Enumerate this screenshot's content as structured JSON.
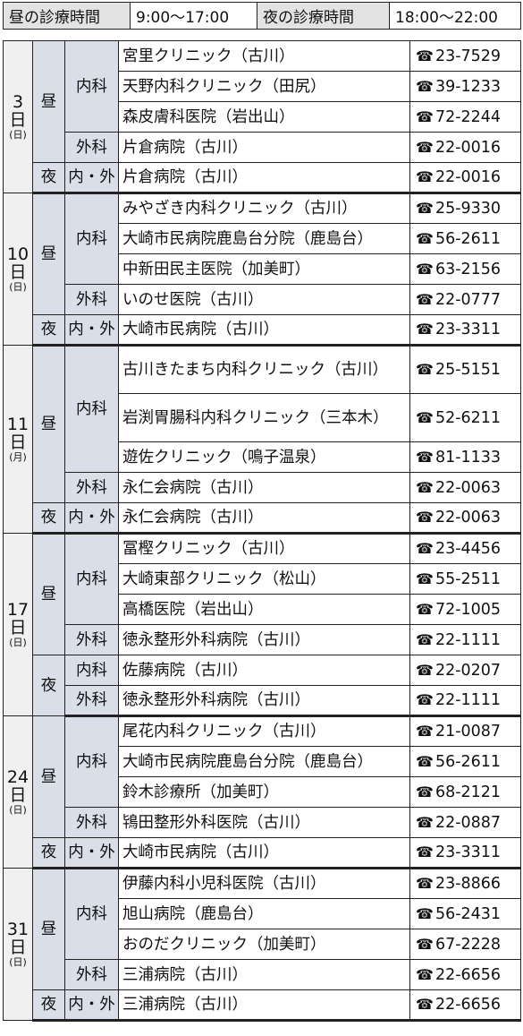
{
  "hours": {
    "day_label": "昼の診療時間",
    "day_time": "9:00〜17:00",
    "night_label": "夜の診療時間",
    "night_time": "18:00〜22:00"
  },
  "day_char": "日",
  "tel_symbol": "☎",
  "rows": [
    {
      "day": {
        "num": "3",
        "week": "(日)",
        "rows": 5
      },
      "slot": {
        "label": "昼",
        "rows": 4
      },
      "dept": {
        "label": "内科",
        "rows": 3
      },
      "clinic": "宮里クリニック（古川）",
      "phone": "23-7529"
    },
    {
      "clinic": "天野内科クリニック（田尻）",
      "phone": "39-1233"
    },
    {
      "clinic": "森皮膚科医院（岩出山）",
      "phone": "72-2244"
    },
    {
      "dept": {
        "label": "外科",
        "rows": 1
      },
      "clinic": "片倉病院（古川）",
      "phone": "22-0016"
    },
    {
      "slot": {
        "label": "夜",
        "rows": 1
      },
      "dept": {
        "label": "内・外",
        "rows": 1
      },
      "clinic": "片倉病院（古川）",
      "phone": "22-0016",
      "dayend": true
    },
    {
      "day": {
        "num": "10",
        "week": "(日)",
        "rows": 5
      },
      "slot": {
        "label": "昼",
        "rows": 4
      },
      "dept": {
        "label": "内科",
        "rows": 3
      },
      "clinic": "みやざき内科クリニック（古川）",
      "phone": "25-9330"
    },
    {
      "clinic": "大崎市民病院鹿島台分院（鹿島台）",
      "phone": "56-2611"
    },
    {
      "clinic": "中新田民主医院（加美町）",
      "phone": "63-2156"
    },
    {
      "dept": {
        "label": "外科",
        "rows": 1
      },
      "clinic": "いのせ医院（古川）",
      "phone": "22-0777"
    },
    {
      "slot": {
        "label": "夜",
        "rows": 1
      },
      "dept": {
        "label": "内・外",
        "rows": 1
      },
      "clinic": "大崎市民病院（古川）",
      "phone": "23-3311",
      "dayend": true
    },
    {
      "day": {
        "num": "11",
        "week": "(月)",
        "rows": 5
      },
      "slot": {
        "label": "昼",
        "rows": 4
      },
      "dept": {
        "label": "内科",
        "rows": 3
      },
      "clinic": "古川きたまち内科クリニック（古川）",
      "phone": "25-5151",
      "tall": true
    },
    {
      "clinic": "岩渕胃腸科内科クリニック（三本木）",
      "phone": "52-6211",
      "tall": true
    },
    {
      "clinic": "遊佐クリニック（鳴子温泉）",
      "phone": "81-1133"
    },
    {
      "dept": {
        "label": "外科",
        "rows": 1
      },
      "clinic": "永仁会病院（古川）",
      "phone": "22-0063"
    },
    {
      "slot": {
        "label": "夜",
        "rows": 1
      },
      "dept": {
        "label": "内・外",
        "rows": 1
      },
      "clinic": "永仁会病院（古川）",
      "phone": "22-0063",
      "dayend": true
    },
    {
      "day": {
        "num": "17",
        "week": "(日)",
        "rows": 6
      },
      "slot": {
        "label": "昼",
        "rows": 4
      },
      "dept": {
        "label": "内科",
        "rows": 3
      },
      "clinic": "冨樫クリニック（古川）",
      "phone": "23-4456"
    },
    {
      "clinic": "大崎東部クリニック（松山）",
      "phone": "55-2511"
    },
    {
      "clinic": "高橋医院（岩出山）",
      "phone": "72-1005"
    },
    {
      "dept": {
        "label": "外科",
        "rows": 1
      },
      "clinic": "徳永整形外科病院（古川）",
      "phone": "22-1111"
    },
    {
      "slot": {
        "label": "夜",
        "rows": 2
      },
      "dept": {
        "label": "内科",
        "rows": 1
      },
      "clinic": "佐藤病院（古川）",
      "phone": "22-0207"
    },
    {
      "dept": {
        "label": "外科",
        "rows": 1
      },
      "clinic": "徳永整形外科病院（古川）",
      "phone": "22-1111",
      "dayend": true
    },
    {
      "day": {
        "num": "24",
        "week": "(日)",
        "rows": 5
      },
      "slot": {
        "label": "昼",
        "rows": 4
      },
      "dept": {
        "label": "内科",
        "rows": 3
      },
      "clinic": "尾花内科クリニック（古川）",
      "phone": "21-0087"
    },
    {
      "clinic": "大崎市民病院鹿島台分院（鹿島台）",
      "phone": "56-2611"
    },
    {
      "clinic": "鈴木診療所（加美町）",
      "phone": "68-2121"
    },
    {
      "dept": {
        "label": "外科",
        "rows": 1
      },
      "clinic": "鴇田整形外科医院（古川）",
      "phone": "22-0887"
    },
    {
      "slot": {
        "label": "夜",
        "rows": 1
      },
      "dept": {
        "label": "内・外",
        "rows": 1
      },
      "clinic": "大崎市民病院（古川）",
      "phone": "23-3311",
      "dayend": true
    },
    {
      "day": {
        "num": "31",
        "week": "(日)",
        "rows": 5
      },
      "slot": {
        "label": "昼",
        "rows": 4
      },
      "dept": {
        "label": "内科",
        "rows": 3
      },
      "clinic": "伊藤内科小児科医院（古川）",
      "phone": "23-8866"
    },
    {
      "clinic": "旭山病院（鹿島台）",
      "phone": "56-2431"
    },
    {
      "clinic": "おのだクリニック（加美町）",
      "phone": "67-2228"
    },
    {
      "dept": {
        "label": "外科",
        "rows": 1
      },
      "clinic": "三浦病院（古川）",
      "phone": "22-6656"
    },
    {
      "slot": {
        "label": "夜",
        "rows": 1
      },
      "dept": {
        "label": "内・外",
        "rows": 1
      },
      "clinic": "三浦病院（古川）",
      "phone": "22-6656",
      "dayend": true
    }
  ]
}
